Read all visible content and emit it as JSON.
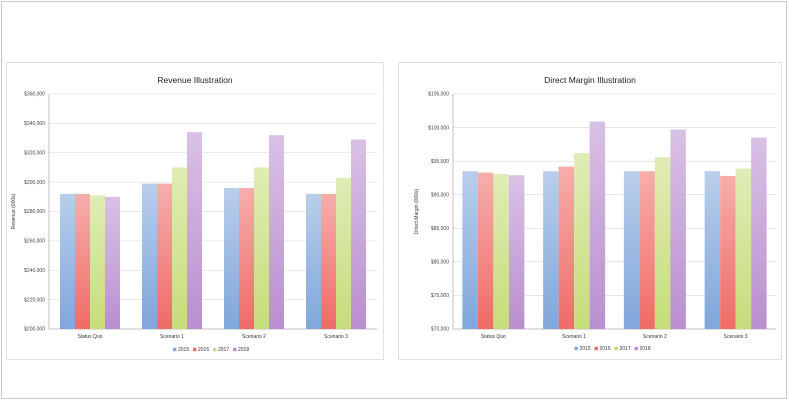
{
  "chart_data": [
    {
      "type": "bar",
      "title": "Revenue Illustration",
      "ylabel": "Revenue (000s)",
      "ylim": [
        200000,
        360000
      ],
      "yticks": [
        200000,
        220000,
        240000,
        260000,
        280000,
        300000,
        320000,
        340000,
        360000
      ],
      "ytick_labels": [
        "$200,000",
        "$220,000",
        "$240,000",
        "$260,000",
        "$280,000",
        "$300,000",
        "$320,000",
        "$340,000",
        "$360,000"
      ],
      "categories": [
        "Status Quo",
        "Scenario 1",
        "Scenario 2",
        "Scenario 3"
      ],
      "legend_position": "bottom",
      "grid": true,
      "series": [
        {
          "name": "2015",
          "color": "#7fa6db",
          "values": [
            292000,
            299000,
            296000,
            292000
          ]
        },
        {
          "name": "2016",
          "color": "#ef6b66",
          "values": [
            292000,
            299000,
            296000,
            292000
          ]
        },
        {
          "name": "2017",
          "color": "#c6dd7a",
          "values": [
            291000,
            310000,
            310000,
            303000
          ]
        },
        {
          "name": "2018",
          "color": "#b98fcf",
          "values": [
            290000,
            334000,
            332000,
            329000
          ]
        }
      ]
    },
    {
      "type": "bar",
      "title": "Direct Margin Illustration",
      "ylabel": "Direct Margin (000s)",
      "ylim": [
        70000,
        105000
      ],
      "yticks": [
        70000,
        75000,
        80000,
        85000,
        90000,
        95000,
        100000,
        105000
      ],
      "ytick_labels": [
        "$70,000",
        "$75,000",
        "$80,000",
        "$85,000",
        "$90,000",
        "$95,000",
        "$100,000",
        "$105,000"
      ],
      "categories": [
        "Status Quo",
        "Scenario 1",
        "Scenario 2",
        "Scenario 3"
      ],
      "legend_position": "bottom",
      "grid": true,
      "series": [
        {
          "name": "2015",
          "color": "#7fa6db",
          "values": [
            93500,
            93500,
            93500,
            93500
          ]
        },
        {
          "name": "2016",
          "color": "#ef6b66",
          "values": [
            93300,
            94200,
            93500,
            92800
          ]
        },
        {
          "name": "2017",
          "color": "#c6dd7a",
          "values": [
            93100,
            96200,
            95600,
            93900
          ]
        },
        {
          "name": "2018",
          "color": "#b98fcf",
          "values": [
            92900,
            100900,
            99700,
            98500
          ]
        }
      ]
    }
  ]
}
